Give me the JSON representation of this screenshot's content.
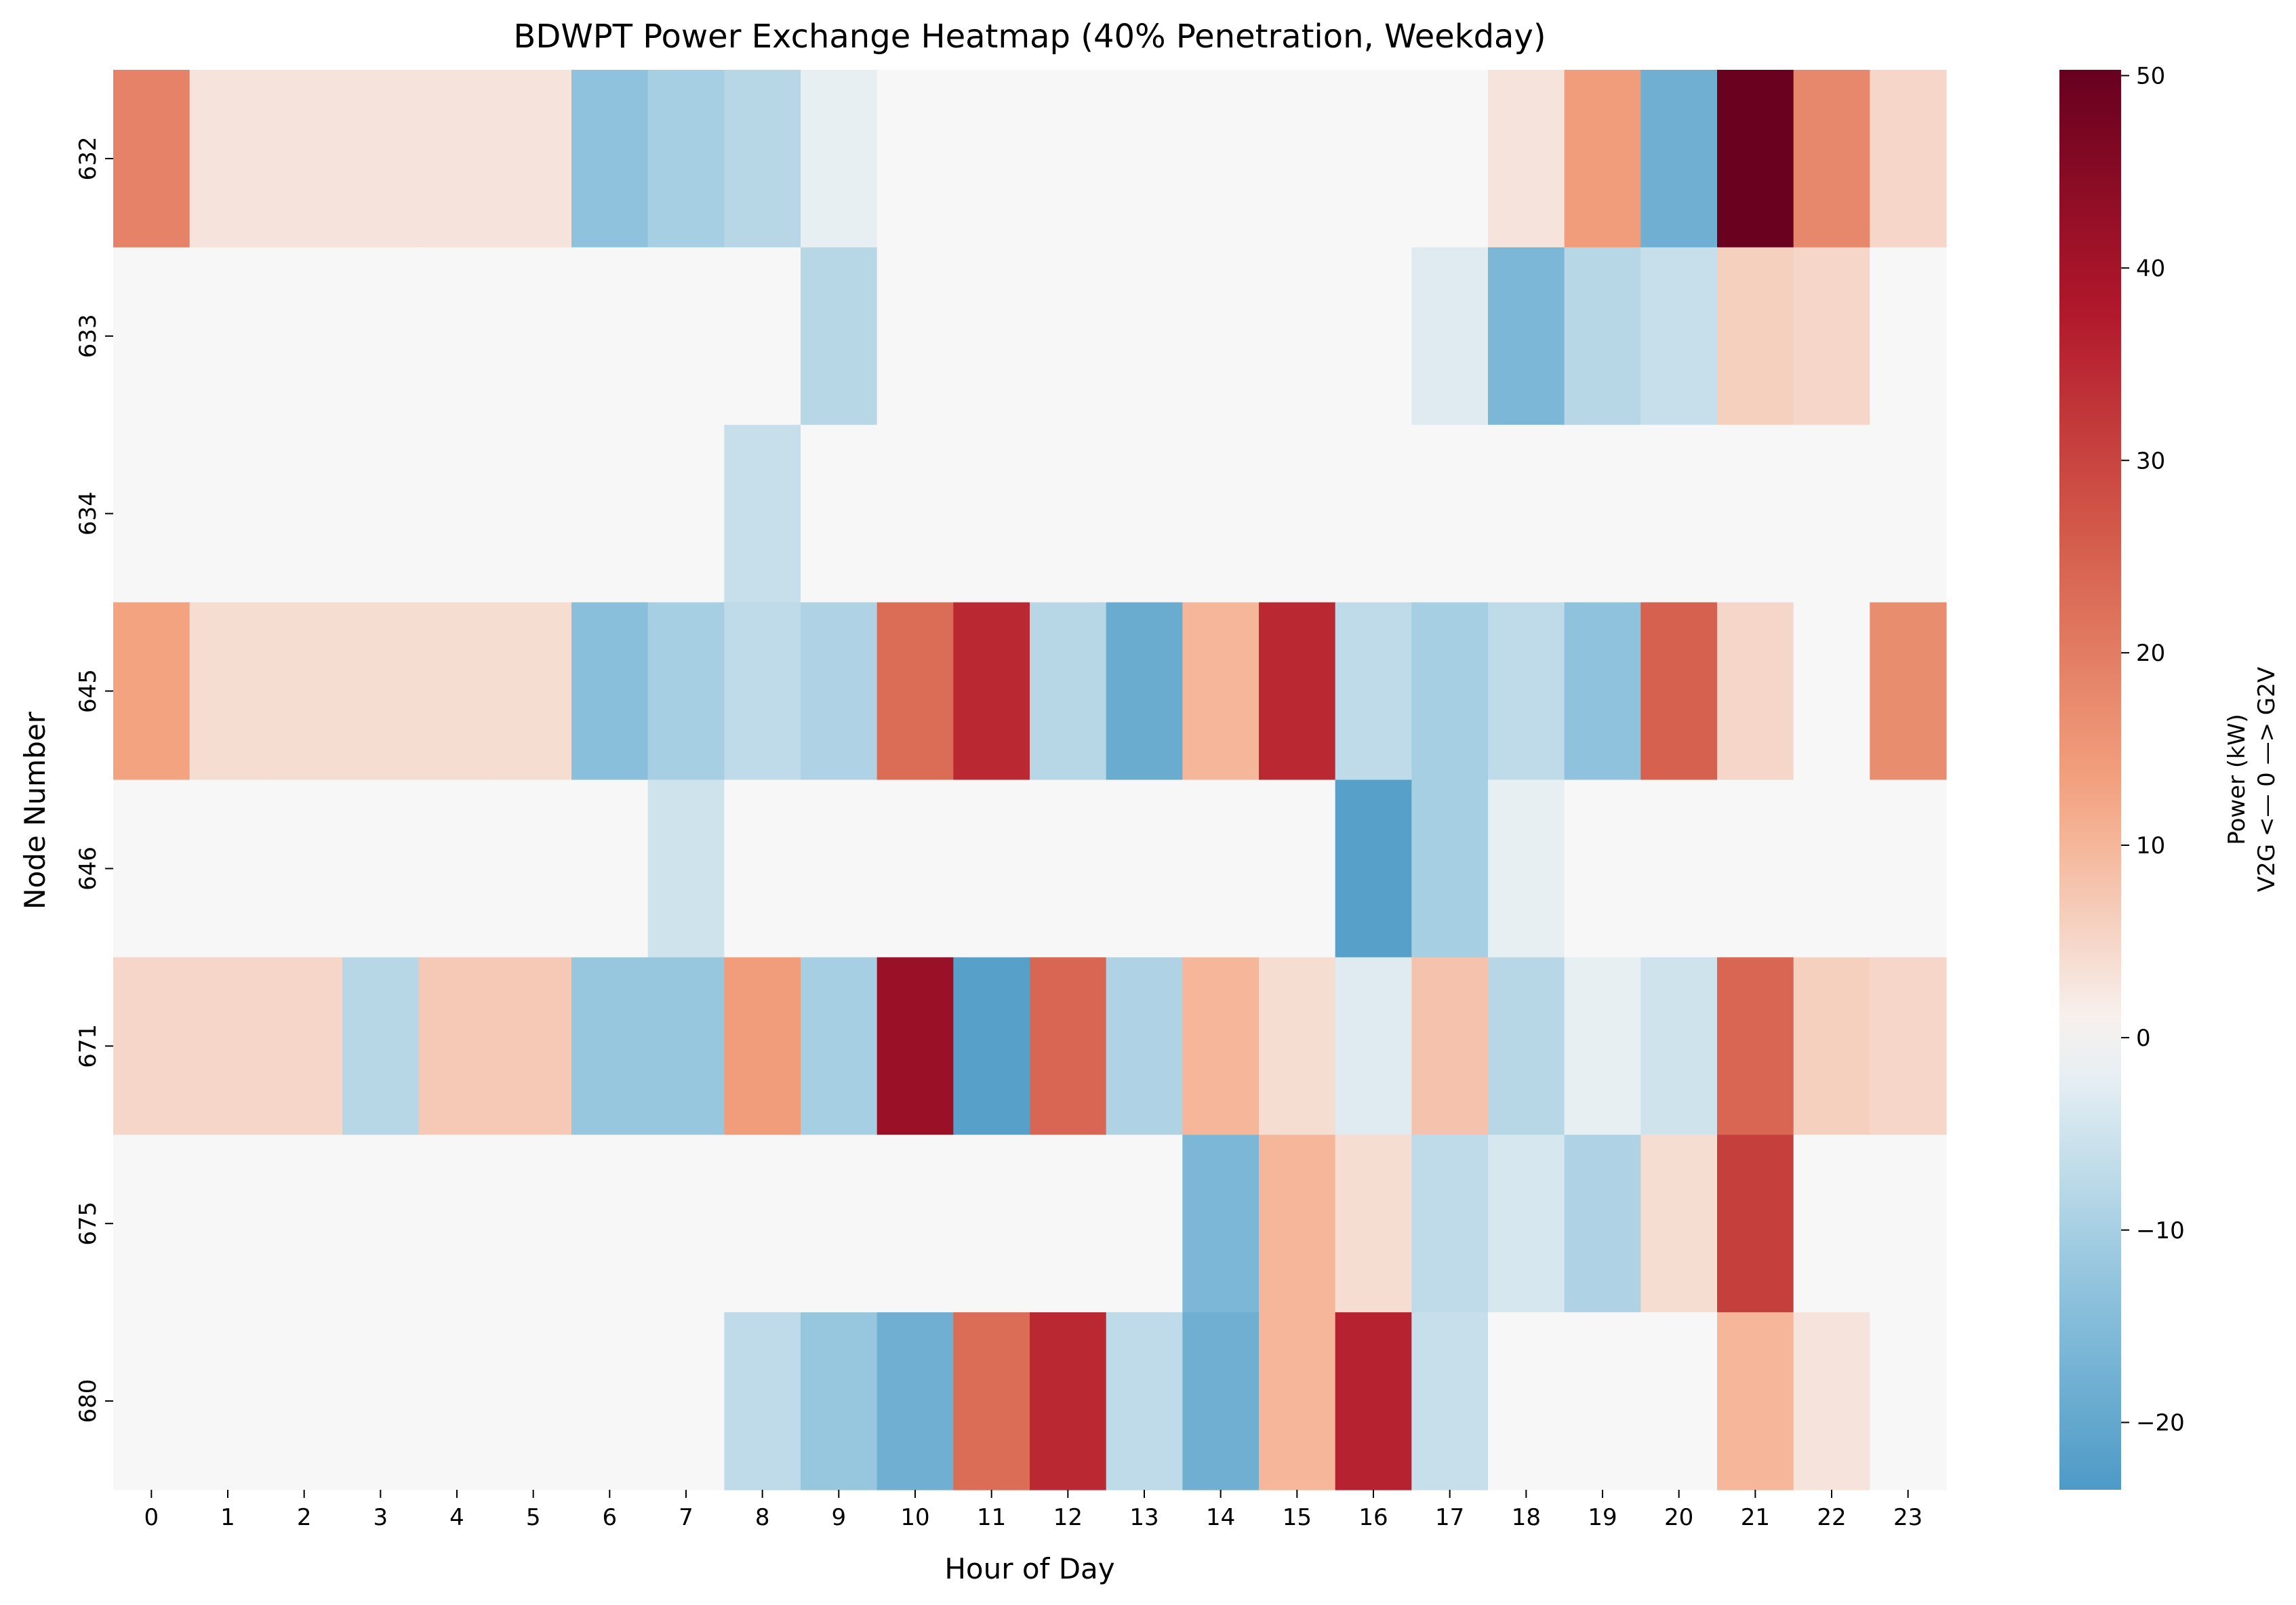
{
  "chart_data": {
    "type": "heatmap",
    "title": "BDWPT Power Exchange Heatmap (40% Penetration, Weekday)",
    "xlabel": "Hour of Day",
    "ylabel": "Node Number",
    "x": [
      "0",
      "1",
      "2",
      "3",
      "4",
      "5",
      "6",
      "7",
      "8",
      "9",
      "10",
      "11",
      "12",
      "13",
      "14",
      "15",
      "16",
      "17",
      "18",
      "19",
      "20",
      "21",
      "22",
      "23"
    ],
    "y": [
      "632",
      "633",
      "634",
      "645",
      "646",
      "671",
      "675",
      "680"
    ],
    "values": [
      [
        19,
        3,
        3,
        3,
        3,
        3,
        -13,
        -10,
        -8,
        -2,
        0,
        0,
        0,
        0,
        0,
        0,
        0,
        0,
        3,
        14,
        -18,
        50,
        18,
        5
      ],
      [
        0,
        0,
        0,
        0,
        0,
        0,
        0,
        0,
        0,
        -8,
        0,
        0,
        0,
        0,
        0,
        0,
        0,
        -3,
        -16,
        -8,
        -6,
        6,
        5,
        0
      ],
      [
        0,
        0,
        0,
        0,
        0,
        0,
        0,
        0,
        -6,
        0,
        0,
        0,
        0,
        0,
        0,
        0,
        0,
        0,
        0,
        0,
        0,
        0,
        0,
        0
      ],
      [
        13,
        4,
        4,
        4,
        4,
        4,
        -14,
        -10,
        -7,
        -9,
        23,
        35,
        -8,
        -19,
        10,
        35,
        -7,
        -10,
        -7,
        -13,
        25,
        5,
        0,
        17
      ],
      [
        0,
        0,
        0,
        0,
        0,
        0,
        0,
        -5,
        0,
        0,
        0,
        0,
        0,
        0,
        0,
        0,
        -22,
        -10,
        -2,
        0,
        0,
        0,
        0,
        0
      ],
      [
        5,
        5,
        5,
        -8,
        7,
        7,
        -12,
        -12,
        14,
        -10,
        42,
        -22,
        24,
        -9,
        10,
        4,
        -3,
        8,
        -8,
        -2,
        -5,
        24,
        6,
        5
      ],
      [
        0,
        0,
        0,
        0,
        0,
        0,
        0,
        0,
        0,
        0,
        0,
        0,
        0,
        0,
        -16,
        10,
        4,
        -7,
        -4,
        -9,
        4,
        31,
        0,
        0
      ],
      [
        0,
        0,
        0,
        0,
        0,
        0,
        0,
        0,
        -7,
        -12,
        -18,
        23,
        35,
        -7,
        -18,
        10,
        36,
        -6,
        0,
        0,
        0,
        10,
        3,
        0
      ]
    ],
    "colorbar": {
      "label_line1": "Power (kW)",
      "label_line2": "V2G <— 0 —> G2V",
      "ticks": [
        50,
        40,
        30,
        20,
        10,
        0,
        -10,
        -20
      ],
      "tick_labels": [
        "50",
        "40",
        "30",
        "20",
        "10",
        "0",
        "−10",
        "−20"
      ],
      "vmin": -23.5,
      "vmax": 50.3,
      "colormap": "RdBu_r",
      "center": 0
    }
  }
}
